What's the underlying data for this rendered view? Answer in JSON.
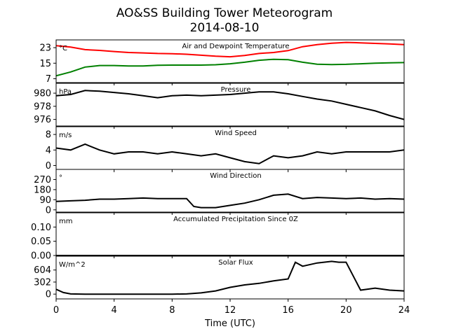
{
  "chart_data": {
    "type": "line",
    "title": "AO&SS Building Tower Meteorogram",
    "subtitle": "2014-08-10",
    "xlabel": "Time (UTC)",
    "xlim": [
      0,
      24
    ],
    "xticks": [
      0,
      4,
      8,
      12,
      16,
      20,
      24
    ],
    "panels": [
      {
        "title": "Air and Dewpoint Temperature",
        "unit": "°C",
        "ylim": [
          5,
          27
        ],
        "yticks": [
          7,
          15,
          23
        ],
        "series": [
          {
            "color": "#ff0000",
            "x": [
              0,
              1,
              2,
              3,
              4,
              5,
              6,
              7,
              8,
              9,
              10,
              11,
              12,
              13,
              14,
              15,
              16,
              17,
              18,
              19,
              20,
              21,
              22,
              23,
              24
            ],
            "values": [
              24.0,
              23.3,
              22.0,
              21.6,
              21.0,
              20.5,
              20.3,
              20.0,
              19.9,
              19.6,
              19.1,
              18.6,
              18.3,
              19.0,
              20.0,
              20.5,
              21.5,
              23.5,
              24.6,
              25.3,
              25.7,
              25.5,
              25.2,
              24.9,
              24.6
            ]
          },
          {
            "color": "#008000",
            "x": [
              0,
              1,
              2,
              3,
              4,
              5,
              6,
              7,
              8,
              9,
              10,
              11,
              12,
              13,
              14,
              15,
              16,
              17,
              18,
              19,
              20,
              21,
              22,
              23,
              24
            ],
            "values": [
              8.5,
              10.5,
              13.0,
              13.8,
              13.8,
              13.6,
              13.6,
              13.9,
              14.0,
              14.0,
              14.0,
              14.2,
              14.7,
              15.5,
              16.5,
              17.0,
              16.8,
              15.5,
              14.5,
              14.3,
              14.4,
              14.7,
              15.0,
              15.2,
              15.3
            ]
          }
        ]
      },
      {
        "title": "Pressure",
        "unit": "hPa",
        "ylim": [
          975,
          981.5
        ],
        "yticks": [
          976,
          978,
          980
        ],
        "series": [
          {
            "color": "#000000",
            "x": [
              0,
              1,
              2,
              3,
              4,
              5,
              6,
              7,
              8,
              9,
              10,
              11,
              12,
              13,
              14,
              15,
              16,
              17,
              18,
              19,
              20,
              21,
              22,
              23,
              24
            ],
            "values": [
              979.6,
              979.8,
              980.4,
              980.3,
              980.1,
              979.9,
              979.6,
              979.3,
              979.6,
              979.7,
              979.6,
              979.7,
              979.8,
              980.0,
              980.2,
              980.2,
              979.9,
              979.5,
              979.1,
              978.8,
              978.3,
              977.8,
              977.3,
              976.6,
              976.0
            ]
          }
        ]
      },
      {
        "title": "Wind Speed",
        "unit": "m/s",
        "ylim": [
          -1,
          10
        ],
        "yticks": [
          0,
          4,
          8
        ],
        "series": [
          {
            "color": "#000000",
            "x": [
              0,
              1,
              2,
              3,
              4,
              5,
              6,
              7,
              8,
              9,
              10,
              11,
              12,
              13,
              14,
              15,
              16,
              17,
              18,
              19,
              20,
              21,
              22,
              23,
              24
            ],
            "values": [
              4.5,
              4.0,
              5.5,
              4.0,
              3.0,
              3.5,
              3.5,
              3.0,
              3.5,
              3.0,
              2.5,
              3.0,
              2.0,
              1.0,
              0.5,
              2.5,
              2.0,
              2.5,
              3.5,
              3.0,
              3.5,
              3.5,
              3.5,
              3.5,
              4.0
            ]
          }
        ]
      },
      {
        "title": "Wind Direction",
        "unit": "°",
        "ylim": [
          -20,
          360
        ],
        "yticks": [
          0,
          90,
          180,
          270
        ],
        "series": [
          {
            "color": "#000000",
            "x": [
              0,
              1,
              2,
              3,
              4,
              5,
              6,
              7,
              8,
              9,
              9.5,
              10,
              11,
              12,
              13,
              14,
              15,
              16,
              17,
              18,
              19,
              20,
              21,
              22,
              23,
              24
            ],
            "values": [
              75,
              80,
              85,
              95,
              95,
              100,
              105,
              100,
              100,
              100,
              30,
              20,
              20,
              40,
              60,
              90,
              130,
              140,
              100,
              110,
              105,
              100,
              105,
              95,
              100,
              95
            ]
          }
        ]
      },
      {
        "title": "Accumulated Precipitation Since 0Z",
        "unit": "mm",
        "ylim": [
          0,
          0.15
        ],
        "yticks": [
          0.0,
          0.05,
          0.1
        ],
        "ytick_labels": [
          "0.00",
          "0.05",
          "0.10"
        ],
        "series": [
          {
            "color": "#000000",
            "x": [
              0,
              24
            ],
            "values": [
              0,
              0
            ]
          }
        ]
      },
      {
        "title": "Solar Flux",
        "unit": "W/m^2",
        "ylim": [
          -120,
          950
        ],
        "yticks": [
          0,
          302,
          604
        ],
        "series": [
          {
            "color": "#000000",
            "x": [
              0,
              0.5,
              1,
              2,
              4,
              6,
              8,
              9,
              10,
              11,
              12,
              13,
              14,
              15,
              16,
              16.5,
              17,
              18,
              19,
              19.5,
              20,
              21,
              22,
              23,
              24
            ],
            "values": [
              120,
              40,
              5,
              0,
              0,
              0,
              0,
              5,
              30,
              80,
              170,
              230,
              270,
              330,
              380,
              800,
              700,
              780,
              820,
              800,
              800,
              100,
              150,
              100,
              80
            ]
          }
        ]
      }
    ]
  }
}
